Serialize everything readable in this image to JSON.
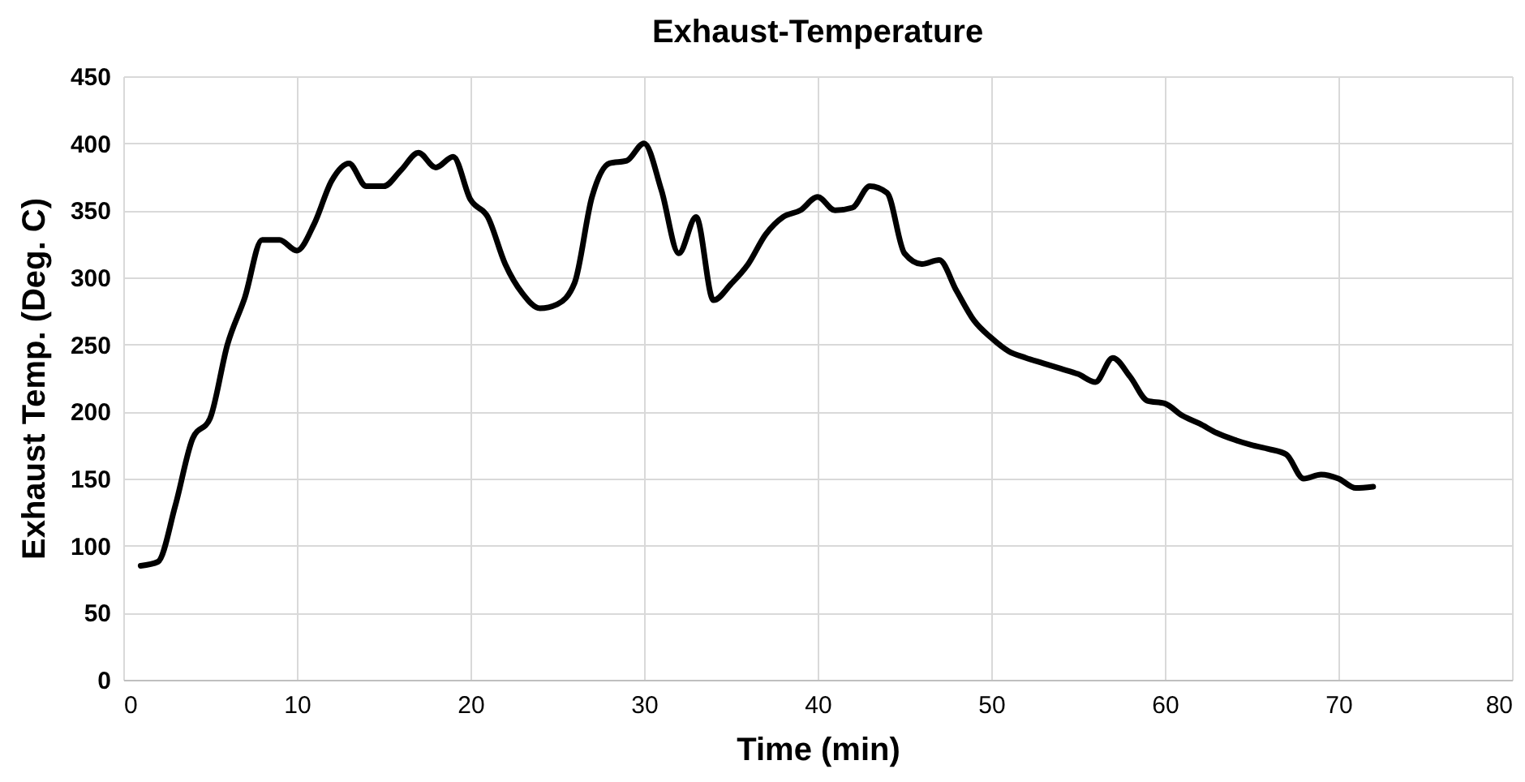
{
  "chart_data": {
    "type": "line",
    "title": "Exhaust-Temperature",
    "xlabel": "Time (min)",
    "ylabel": "Exhaust Temp. (Deg. C)",
    "x": [
      1,
      2,
      3,
      4,
      5,
      6,
      7,
      8,
      9,
      10,
      11,
      12,
      13,
      14,
      15,
      16,
      17,
      18,
      19,
      20,
      21,
      22,
      23,
      24,
      25,
      26,
      27,
      28,
      29,
      30,
      31,
      32,
      33,
      34,
      35,
      36,
      37,
      38,
      39,
      40,
      41,
      42,
      43,
      44,
      45,
      46,
      47,
      48,
      49,
      50,
      51,
      52,
      53,
      54,
      55,
      56,
      57,
      58,
      59,
      60,
      61,
      62,
      63,
      64,
      65,
      66,
      67,
      68,
      69,
      70,
      71,
      72
    ],
    "series": [
      {
        "color": "#000000",
        "values": [
          85,
          88,
          130,
          180,
          195,
          250,
          285,
          328,
          328,
          320,
          340,
          372,
          385,
          368,
          368,
          380,
          393,
          382,
          390,
          358,
          345,
          310,
          288,
          277,
          280,
          296,
          360,
          385,
          387,
          400,
          365,
          318,
          345,
          283,
          295,
          310,
          332,
          345,
          350,
          360,
          350,
          352,
          368,
          363,
          318,
          310,
          313,
          290,
          268,
          255,
          245,
          240,
          236,
          232,
          228,
          222,
          240,
          226,
          208,
          206,
          197,
          191,
          184,
          179,
          175,
          172,
          168,
          150,
          153,
          150,
          143,
          144
        ]
      }
    ],
    "xlim": [
      0,
      80
    ],
    "xticks": [
      0,
      10,
      20,
      30,
      40,
      50,
      60,
      70,
      80
    ],
    "ylim": [
      0,
      450
    ],
    "yticks": [
      0,
      50,
      100,
      150,
      200,
      250,
      300,
      350,
      400,
      450
    ],
    "grid": true,
    "marker": "none",
    "line_style": "solid"
  }
}
